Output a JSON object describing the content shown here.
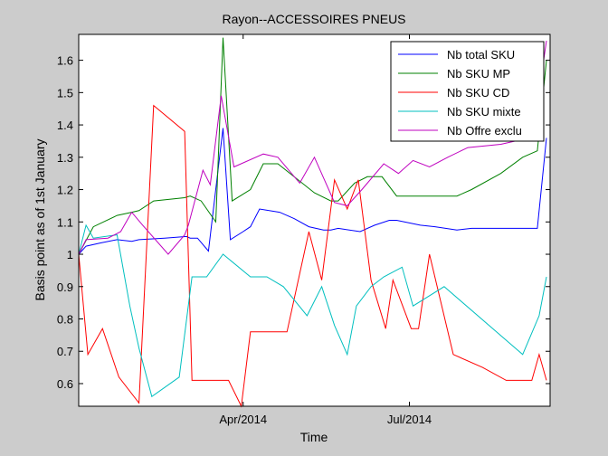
{
  "chart_data": {
    "type": "line",
    "title": "Rayon--ACCESSOIRES PNEUS",
    "xlabel": "Time",
    "ylabel": "Basis point as of 1st January",
    "ylim": [
      0.53,
      1.68
    ],
    "xlim": [
      "2014-01-01",
      "2014-09-16"
    ],
    "yticks": [
      0.6,
      0.7,
      0.8,
      0.9,
      1,
      1.1,
      1.2,
      1.3,
      1.4,
      1.5,
      1.6
    ],
    "ytick_labels": [
      "0.6",
      "0.7",
      "0.8",
      "0.9",
      "1",
      "1.1",
      "1.2",
      "1.3",
      "1.4",
      "1.5",
      "1.6"
    ],
    "xticks": [
      "2014-04-01",
      "2014-07-01"
    ],
    "xtick_labels": [
      "Apr/2014",
      "Jul/2014"
    ],
    "grid": false,
    "legend_position": "top-right",
    "series": [
      {
        "name": "Nb total SKU",
        "color": "#0000ff",
        "x": [
          "2014-01-01",
          "2014-01-05",
          "2014-01-13",
          "2014-01-22",
          "2014-01-30",
          "2014-02-03",
          "2014-02-17",
          "2014-03-01",
          "2014-03-03",
          "2014-03-07",
          "2014-03-13",
          "2014-03-21",
          "2014-03-25",
          "2014-04-01",
          "2014-04-05",
          "2014-04-10",
          "2014-04-21",
          "2014-04-29",
          "2014-05-07",
          "2014-05-15",
          "2014-05-19",
          "2014-05-23",
          "2014-06-04",
          "2014-06-12",
          "2014-06-20",
          "2014-06-24",
          "2014-07-07",
          "2014-07-15",
          "2014-07-27",
          "2014-08-04",
          "2014-08-20",
          "2014-09-01",
          "2014-09-09",
          "2014-09-14"
        ],
        "y": [
          1.0,
          1.025,
          1.035,
          1.045,
          1.04,
          1.045,
          1.05,
          1.055,
          1.05,
          1.05,
          1.01,
          1.39,
          1.045,
          1.07,
          1.085,
          1.14,
          1.13,
          1.11,
          1.085,
          1.075,
          1.075,
          1.08,
          1.07,
          1.09,
          1.105,
          1.105,
          1.09,
          1.085,
          1.075,
          1.08,
          1.08,
          1.08,
          1.08,
          1.36
        ]
      },
      {
        "name": "Nb SKU MP",
        "color": "#008000",
        "x": [
          "2014-01-01",
          "2014-01-09",
          "2014-01-22",
          "2014-01-30",
          "2014-02-03",
          "2014-02-11",
          "2014-02-28",
          "2014-03-03",
          "2014-03-09",
          "2014-03-17",
          "2014-03-21",
          "2014-03-26",
          "2014-04-05",
          "2014-04-12",
          "2014-04-20",
          "2014-05-10",
          "2014-05-19",
          "2014-05-23",
          "2014-06-01",
          "2014-06-08",
          "2014-06-16",
          "2014-06-24",
          "2014-07-05",
          "2014-07-27",
          "2014-08-04",
          "2014-08-20",
          "2014-09-01",
          "2014-09-09",
          "2014-09-14"
        ],
        "y": [
          1.0,
          1.085,
          1.12,
          1.13,
          1.135,
          1.165,
          1.175,
          1.18,
          1.165,
          1.1,
          1.67,
          1.165,
          1.2,
          1.28,
          1.28,
          1.19,
          1.165,
          1.165,
          1.22,
          1.24,
          1.24,
          1.18,
          1.18,
          1.18,
          1.2,
          1.25,
          1.3,
          1.32,
          1.6
        ]
      },
      {
        "name": "Nb SKU CD",
        "color": "#ff0000",
        "x": [
          "2014-01-01",
          "2014-01-06",
          "2014-01-14",
          "2014-01-23",
          "2014-02-03",
          "2014-02-11",
          "2014-02-28",
          "2014-03-04",
          "2014-03-12",
          "2014-03-16",
          "2014-03-24",
          "2014-03-31",
          "2014-04-05",
          "2014-04-14",
          "2014-04-25",
          "2014-05-07",
          "2014-05-14",
          "2014-05-21",
          "2014-05-28",
          "2014-06-03",
          "2014-06-10",
          "2014-06-18",
          "2014-06-22",
          "2014-07-02",
          "2014-07-06",
          "2014-07-12",
          "2014-07-25",
          "2014-08-10",
          "2014-08-23",
          "2014-09-06",
          "2014-09-10",
          "2014-09-14"
        ],
        "y": [
          1.0,
          0.69,
          0.77,
          0.62,
          0.54,
          1.46,
          1.38,
          0.61,
          0.61,
          0.61,
          0.61,
          0.53,
          0.76,
          0.76,
          0.76,
          1.07,
          0.92,
          1.23,
          1.14,
          1.23,
          0.92,
          0.77,
          0.92,
          0.77,
          0.77,
          1.0,
          0.69,
          0.65,
          0.61,
          0.61,
          0.69,
          0.61
        ]
      },
      {
        "name": "Nb SKU mixte",
        "color": "#00bfbf",
        "x": [
          "2014-01-01",
          "2014-01-05",
          "2014-01-09",
          "2014-01-22",
          "2014-01-29",
          "2014-02-03",
          "2014-02-10",
          "2014-02-25",
          "2014-03-04",
          "2014-03-12",
          "2014-03-21",
          "2014-04-05",
          "2014-04-14",
          "2014-04-23",
          "2014-05-06",
          "2014-05-14",
          "2014-05-21",
          "2014-05-28",
          "2014-06-02",
          "2014-06-10",
          "2014-06-17",
          "2014-06-27",
          "2014-07-03",
          "2014-07-20",
          "2014-09-01",
          "2014-09-10",
          "2014-09-14"
        ],
        "y": [
          1.0,
          1.09,
          1.05,
          1.06,
          0.84,
          0.71,
          0.56,
          0.62,
          0.93,
          0.93,
          1.0,
          0.93,
          0.93,
          0.9,
          0.81,
          0.9,
          0.78,
          0.69,
          0.84,
          0.9,
          0.93,
          0.96,
          0.84,
          0.9,
          0.69,
          0.81,
          0.93
        ]
      },
      {
        "name": "Nb Offre exclu",
        "color": "#bf00bf",
        "x": [
          "2014-01-01",
          "2014-01-05",
          "2014-01-17",
          "2014-01-24",
          "2014-01-30",
          "2014-02-05",
          "2014-02-19",
          "2014-02-28",
          "2014-03-02",
          "2014-03-10",
          "2014-03-14",
          "2014-03-20",
          "2014-03-27",
          "2014-04-12",
          "2014-04-20",
          "2014-05-02",
          "2014-05-10",
          "2014-05-21",
          "2014-05-28",
          "2014-06-05",
          "2014-06-17",
          "2014-06-25",
          "2014-07-03",
          "2014-07-12",
          "2014-07-22",
          "2014-08-02",
          "2014-08-20",
          "2014-08-28",
          "2014-09-06",
          "2014-09-14"
        ],
        "y": [
          1.0,
          1.045,
          1.05,
          1.07,
          1.13,
          1.09,
          1.0,
          1.06,
          1.09,
          1.26,
          1.215,
          1.49,
          1.27,
          1.31,
          1.3,
          1.22,
          1.3,
          1.16,
          1.15,
          1.2,
          1.28,
          1.25,
          1.29,
          1.27,
          1.3,
          1.33,
          1.34,
          1.35,
          1.35,
          1.66
        ]
      }
    ]
  }
}
